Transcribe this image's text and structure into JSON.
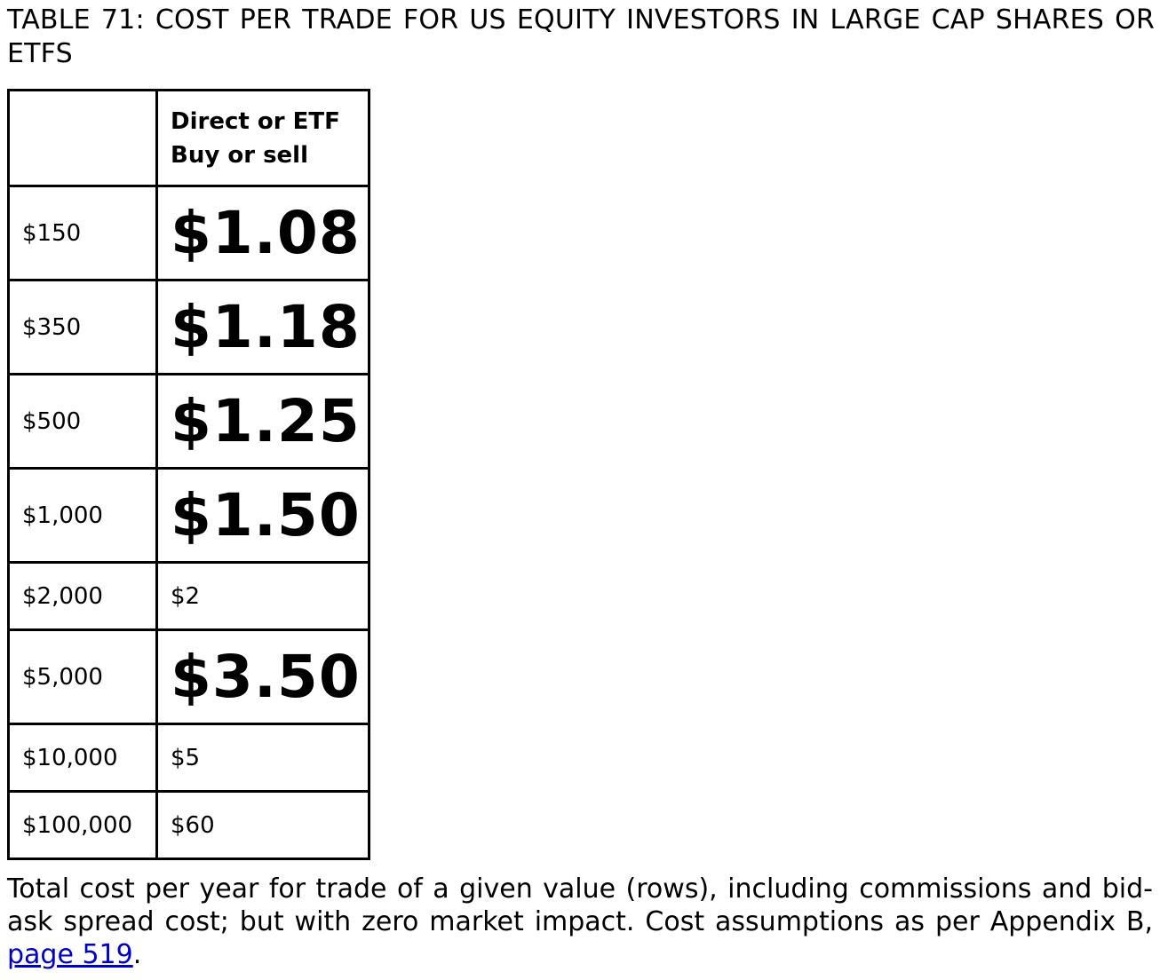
{
  "title": "TABLE 71: COST PER TRADE FOR US EQUITY INVESTORS IN LARGE CAP SHARES OR ETFS",
  "table": {
    "header": {
      "col_a": "",
      "col_b_line1": "Direct or ETF",
      "col_b_line2": "Buy or sell"
    },
    "rows": [
      {
        "value": "$150",
        "cost": "$1.08",
        "emphasis": "large"
      },
      {
        "value": "$350",
        "cost": "$1.18",
        "emphasis": "large"
      },
      {
        "value": "$500",
        "cost": "$1.25",
        "emphasis": "large"
      },
      {
        "value": "$1,000",
        "cost": "$1.50",
        "emphasis": "large"
      },
      {
        "value": "$2,000",
        "cost": "$2",
        "emphasis": "normal"
      },
      {
        "value": "$5,000",
        "cost": "$3.50",
        "emphasis": "large"
      },
      {
        "value": "$10,000",
        "cost": "$5",
        "emphasis": "normal"
      },
      {
        "value": "$100,000",
        "cost": "$60",
        "emphasis": "normal"
      }
    ]
  },
  "caption": {
    "text": "Total cost per year for trade of a given value (rows), including commissions and bid-ask spread cost; but with zero market impact. Cost assumptions as per Appendix B, ",
    "link_text": "page 519",
    "end": "."
  },
  "colors": {
    "link": "#0000cc",
    "text": "#000000",
    "border": "#000000"
  }
}
